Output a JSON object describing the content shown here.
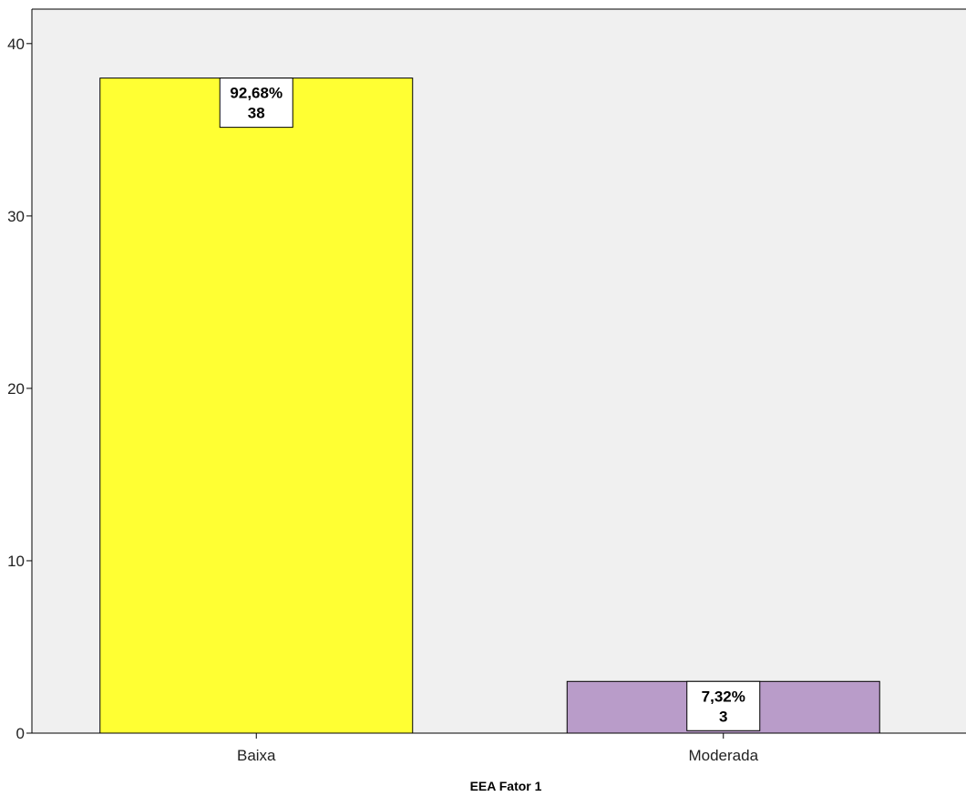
{
  "chart_data": {
    "type": "bar",
    "categories": [
      "Baixa",
      "Moderada"
    ],
    "values": [
      38,
      3
    ],
    "percent_labels": [
      "92,68%",
      "7,32%"
    ],
    "count_labels": [
      "38",
      "3"
    ],
    "xlabel": "EEA Fator 1",
    "ylabel": "",
    "ylim": [
      0,
      42
    ],
    "yticks": [
      0,
      10,
      20,
      30,
      40
    ],
    "ytick_labels": [
      "0",
      "10",
      "20",
      "30",
      "40"
    ],
    "grid": false,
    "legend": "none",
    "colors": {
      "plot_background": "#f0f0f0",
      "bars": [
        "#ffff33",
        "#b99cc9"
      ],
      "bar_stroke": "#000000",
      "axis": "#000000",
      "label_box_fill": "#ffffff"
    }
  }
}
